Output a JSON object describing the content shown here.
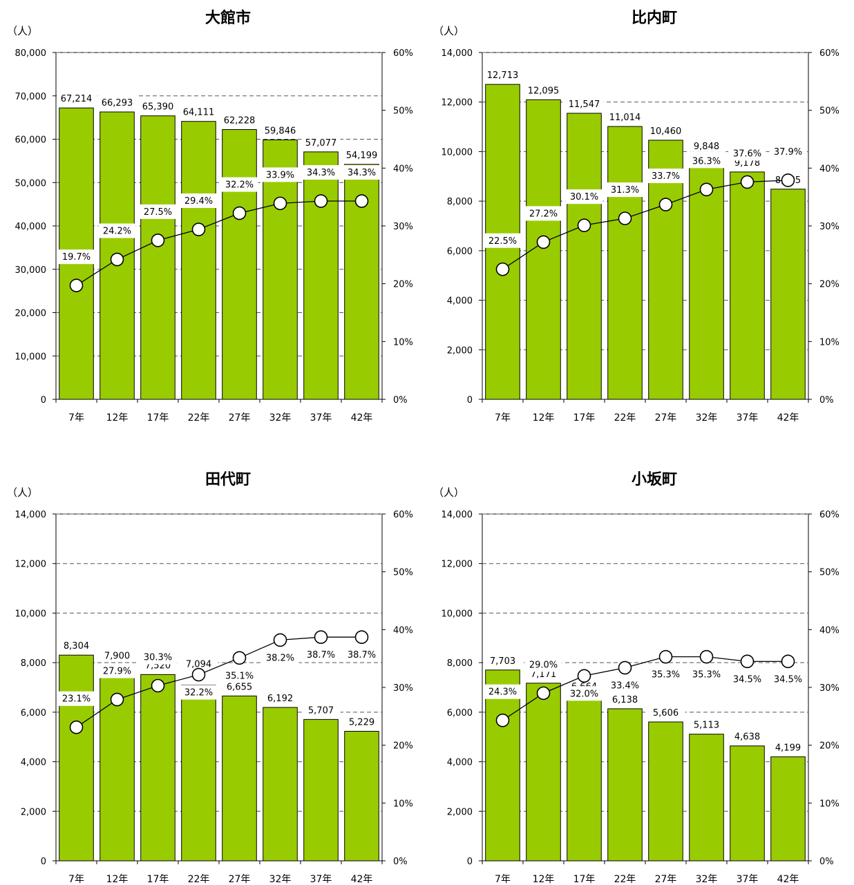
{
  "chart_data": [
    {
      "type": "bar",
      "title": "大館市",
      "unit_label": "（人）",
      "categories": [
        "7年",
        "12年",
        "17年",
        "22年",
        "27年",
        "32年",
        "37年",
        "42年"
      ],
      "values": [
        67214,
        66293,
        65390,
        64111,
        62228,
        59846,
        57077,
        54199
      ],
      "value_labels": [
        "67,214",
        "66,293",
        "65,390",
        "64,111",
        "62,228",
        "59,846",
        "57,077",
        "54,199"
      ],
      "line_values": [
        19.7,
        24.2,
        27.5,
        29.4,
        32.2,
        33.9,
        34.3,
        34.3
      ],
      "line_labels": [
        "19.7%",
        "24.2%",
        "27.5%",
        "29.4%",
        "32.2%",
        "33.9%",
        "34.3%",
        "34.3%"
      ],
      "ylim": [
        0,
        80000
      ],
      "yticks": [
        0,
        10000,
        20000,
        30000,
        40000,
        50000,
        60000,
        70000,
        80000
      ],
      "ytick_labels": [
        "0",
        "10,000",
        "20,000",
        "30,000",
        "40,000",
        "50,000",
        "60,000",
        "70,000",
        "80,000"
      ],
      "y2lim": [
        0,
        60
      ],
      "y2ticks": [
        0,
        10,
        20,
        30,
        40,
        50,
        60
      ],
      "y2tick_labels": [
        "0%",
        "10%",
        "20%",
        "30%",
        "40%",
        "50%",
        "60%"
      ],
      "bar_color": "#99cc00",
      "grid": "dashed"
    },
    {
      "type": "bar",
      "title": "比内町",
      "unit_label": "（人）",
      "categories": [
        "7年",
        "12年",
        "17年",
        "22年",
        "27年",
        "32年",
        "37年",
        "42年"
      ],
      "values": [
        12713,
        12095,
        11547,
        11014,
        10460,
        9848,
        9178,
        8485
      ],
      "value_labels": [
        "12,713",
        "12,095",
        "11,547",
        "11,014",
        "10,460",
        "9,848",
        "9,178",
        "8,485"
      ],
      "line_values": [
        22.5,
        27.2,
        30.1,
        31.3,
        33.7,
        36.3,
        37.6,
        37.9
      ],
      "line_labels": [
        "22.5%",
        "27.2%",
        "30.1%",
        "31.3%",
        "33.7%",
        "36.3%",
        "37.6%",
        "37.9%"
      ],
      "ylim": [
        0,
        14000
      ],
      "yticks": [
        0,
        2000,
        4000,
        6000,
        8000,
        10000,
        12000,
        14000
      ],
      "ytick_labels": [
        "0",
        "2,000",
        "4,000",
        "6,000",
        "8,000",
        "10,000",
        "12,000",
        "14,000"
      ],
      "y2lim": [
        0,
        60
      ],
      "y2ticks": [
        0,
        10,
        20,
        30,
        40,
        50,
        60
      ],
      "y2tick_labels": [
        "0%",
        "10%",
        "20%",
        "30%",
        "40%",
        "50%",
        "60%"
      ],
      "bar_color": "#99cc00",
      "grid": "dashed"
    },
    {
      "type": "bar",
      "title": "田代町",
      "unit_label": "（人）",
      "categories": [
        "7年",
        "12年",
        "17年",
        "22年",
        "27年",
        "32年",
        "37年",
        "42年"
      ],
      "values": [
        8304,
        7900,
        7520,
        7094,
        6655,
        6192,
        5707,
        5229
      ],
      "value_labels": [
        "8,304",
        "7,900",
        "7,520",
        "7,094",
        "6,655",
        "6,192",
        "5,707",
        "5,229"
      ],
      "line_values": [
        23.1,
        27.9,
        30.3,
        32.2,
        35.1,
        38.2,
        38.7,
        38.7
      ],
      "line_labels": [
        "23.1%",
        "27.9%",
        "30.3%",
        "32.2%",
        "35.1%",
        "38.2%",
        "38.7%",
        "38.7%"
      ],
      "ylim": [
        0,
        14000
      ],
      "yticks": [
        0,
        2000,
        4000,
        6000,
        8000,
        10000,
        12000,
        14000
      ],
      "ytick_labels": [
        "0",
        "2,000",
        "4,000",
        "6,000",
        "8,000",
        "10,000",
        "12,000",
        "14,000"
      ],
      "y2lim": [
        0,
        60
      ],
      "y2ticks": [
        0,
        10,
        20,
        30,
        40,
        50,
        60
      ],
      "y2tick_labels": [
        "0%",
        "10%",
        "20%",
        "30%",
        "40%",
        "50%",
        "60%"
      ],
      "bar_color": "#99cc00",
      "grid": "dashed"
    },
    {
      "type": "bar",
      "title": "小坂町",
      "unit_label": "（人）",
      "categories": [
        "7年",
        "12年",
        "17年",
        "22年",
        "27年",
        "32年",
        "37年",
        "42年"
      ],
      "values": [
        7703,
        7171,
        6664,
        6138,
        5606,
        5113,
        4638,
        4199
      ],
      "value_labels": [
        "7,703",
        "7,171",
        "6,664",
        "6,138",
        "5,606",
        "5,113",
        "4,638",
        "4,199"
      ],
      "line_values": [
        24.3,
        29.0,
        32.0,
        33.4,
        35.3,
        35.3,
        34.5,
        34.5
      ],
      "line_labels": [
        "24.3%",
        "29.0%",
        "32.0%",
        "33.4%",
        "35.3%",
        "35.3%",
        "34.5%",
        "34.5%"
      ],
      "ylim": [
        0,
        14000
      ],
      "yticks": [
        0,
        2000,
        4000,
        6000,
        8000,
        10000,
        12000,
        14000
      ],
      "ytick_labels": [
        "0",
        "2,000",
        "4,000",
        "6,000",
        "8,000",
        "10,000",
        "12,000",
        "14,000"
      ],
      "y2lim": [
        0,
        60
      ],
      "y2ticks": [
        0,
        10,
        20,
        30,
        40,
        50,
        60
      ],
      "y2tick_labels": [
        "0%",
        "10%",
        "20%",
        "30%",
        "40%",
        "50%",
        "60%"
      ],
      "bar_color": "#99cc00",
      "grid": "dashed"
    }
  ]
}
